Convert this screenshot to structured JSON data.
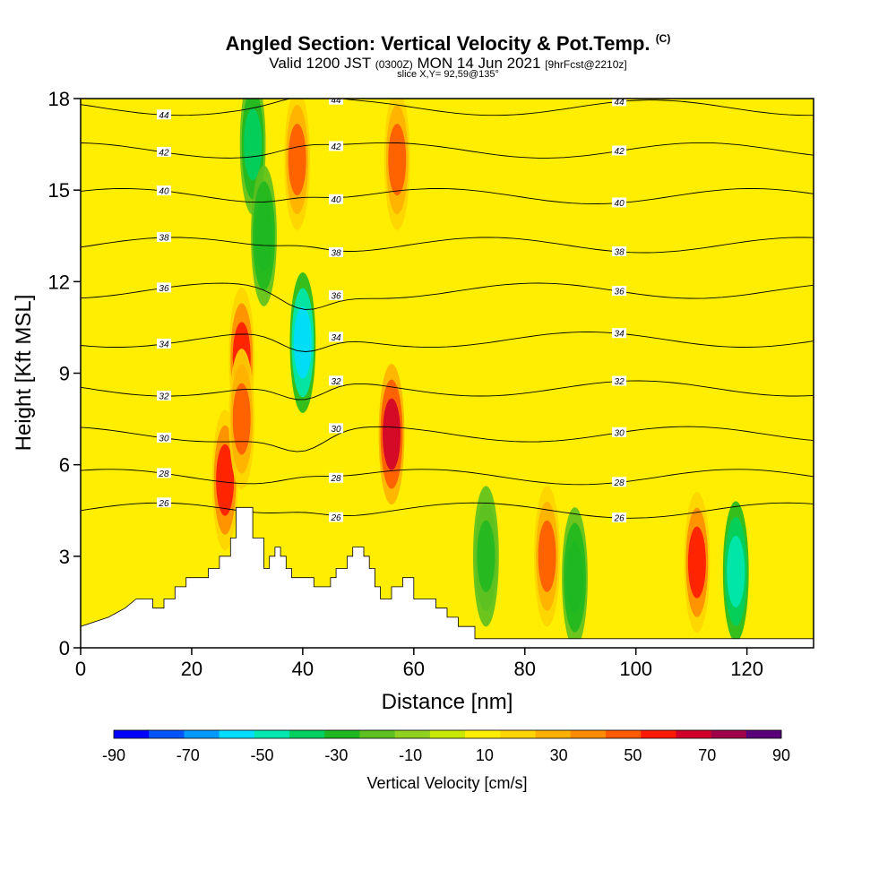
{
  "header": {
    "title": "Angled Section: Vertical Velocity & Pot.Temp.",
    "title_suffix": "(C)",
    "valid_main": "Valid 1200 JST",
    "valid_utc": "(0300Z)",
    "valid_date": "MON 14 Jun 2021",
    "forecast": "[9hrFcst@2210z]",
    "slice": "slice X,Y= 92,59@135°"
  },
  "chart_data": {
    "type": "heatmap",
    "xlabel": "Distance [nm]",
    "ylabel": "Height [Kft MSL]",
    "xlim": [
      0,
      132
    ],
    "ylim": [
      0,
      18
    ],
    "x_ticks": [
      "0",
      "20",
      "40",
      "60",
      "80",
      "100",
      "120"
    ],
    "x_tick_values": [
      0,
      20,
      40,
      60,
      80,
      100,
      120
    ],
    "y_ticks": [
      "0",
      "3",
      "6",
      "9",
      "12",
      "15",
      "18"
    ],
    "y_tick_values": [
      0,
      3,
      6,
      9,
      12,
      15,
      18
    ],
    "colorbar": {
      "label": "Vertical Velocity [cm/s]",
      "tick_labels": [
        "-90",
        "-70",
        "-50",
        "-30",
        "-10",
        "10",
        "30",
        "50",
        "70",
        "90"
      ],
      "range": [
        -90,
        90
      ],
      "step": 10,
      "colors": [
        "#0000ff",
        "#0055ff",
        "#0099ff",
        "#00ddff",
        "#00e8b0",
        "#00d060",
        "#20b820",
        "#5cc020",
        "#90d020",
        "#c8e800",
        "#ffee00",
        "#ffd400",
        "#ffb000",
        "#ff8c00",
        "#ff5a00",
        "#ff1a00",
        "#d0002a",
        "#a0004a",
        "#5a0078"
      ]
    },
    "theta_contours": [
      {
        "label": "26",
        "height": 4.5
      },
      {
        "label": "28",
        "height": 5.6
      },
      {
        "label": "30",
        "height": 7.0
      },
      {
        "label": "32",
        "height": 8.5
      },
      {
        "label": "34",
        "height": 10.1
      },
      {
        "label": "36",
        "height": 11.7
      },
      {
        "label": "38",
        "height": 13.2
      },
      {
        "label": "40",
        "height": 14.8
      },
      {
        "label": "42",
        "height": 16.3
      },
      {
        "label": "44",
        "height": 17.7
      }
    ],
    "terrain": [
      [
        0,
        0.7
      ],
      [
        5,
        1.0
      ],
      [
        8,
        1.3
      ],
      [
        10,
        1.6
      ],
      [
        13,
        1.6
      ],
      [
        13,
        1.3
      ],
      [
        15,
        1.3
      ],
      [
        15,
        1.6
      ],
      [
        17,
        1.6
      ],
      [
        17,
        2.0
      ],
      [
        19,
        2.0
      ],
      [
        19,
        2.3
      ],
      [
        23,
        2.3
      ],
      [
        23,
        2.6
      ],
      [
        25,
        2.6
      ],
      [
        25,
        3.0
      ],
      [
        27,
        3.0
      ],
      [
        27,
        3.6
      ],
      [
        28,
        3.6
      ],
      [
        28,
        4.6
      ],
      [
        31,
        4.6
      ],
      [
        31,
        3.6
      ],
      [
        33,
        3.6
      ],
      [
        33,
        2.6
      ],
      [
        34,
        2.6
      ],
      [
        34,
        3.0
      ],
      [
        35,
        3.0
      ],
      [
        35,
        3.3
      ],
      [
        36,
        3.3
      ],
      [
        36,
        3.0
      ],
      [
        37,
        3.0
      ],
      [
        37,
        2.6
      ],
      [
        38,
        2.6
      ],
      [
        38,
        2.3
      ],
      [
        42,
        2.3
      ],
      [
        42,
        2.0
      ],
      [
        45,
        2.0
      ],
      [
        45,
        2.3
      ],
      [
        46,
        2.3
      ],
      [
        46,
        2.6
      ],
      [
        48,
        2.6
      ],
      [
        48,
        3.0
      ],
      [
        49,
        3.0
      ],
      [
        49,
        3.3
      ],
      [
        51,
        3.3
      ],
      [
        51,
        3.0
      ],
      [
        52,
        3.0
      ],
      [
        52,
        2.6
      ],
      [
        53,
        2.6
      ],
      [
        53,
        2.0
      ],
      [
        54,
        2.0
      ],
      [
        54,
        1.6
      ],
      [
        56,
        1.6
      ],
      [
        56,
        2.0
      ],
      [
        58,
        2.0
      ],
      [
        58,
        2.3
      ],
      [
        60,
        2.3
      ],
      [
        60,
        1.6
      ],
      [
        64,
        1.6
      ],
      [
        64,
        1.3
      ],
      [
        66,
        1.3
      ],
      [
        66,
        1.0
      ],
      [
        68,
        1.0
      ],
      [
        68,
        0.7
      ],
      [
        71,
        0.7
      ],
      [
        71,
        0.3
      ],
      [
        132,
        0.3
      ]
    ],
    "vv_features": [
      {
        "x": 26,
        "z": 5.5,
        "v": 60
      },
      {
        "x": 29,
        "z": 9.5,
        "v": 60
      },
      {
        "x": 29,
        "z": 7.5,
        "v": 55
      },
      {
        "x": 31,
        "z": 16.5,
        "v": -35
      },
      {
        "x": 33,
        "z": 13.5,
        "v": -30
      },
      {
        "x": 40,
        "z": 10.0,
        "v": -60
      },
      {
        "x": 39,
        "z": 16.0,
        "v": 55
      },
      {
        "x": 56,
        "z": 7.0,
        "v": 75
      },
      {
        "x": 57,
        "z": 16.0,
        "v": 55
      },
      {
        "x": 84,
        "z": 3.0,
        "v": 50
      },
      {
        "x": 89,
        "z": 2.3,
        "v": -30
      },
      {
        "x": 111,
        "z": 2.8,
        "v": 60
      },
      {
        "x": 118,
        "z": 2.5,
        "v": -45
      },
      {
        "x": 73,
        "z": 3.0,
        "v": -25
      }
    ]
  }
}
